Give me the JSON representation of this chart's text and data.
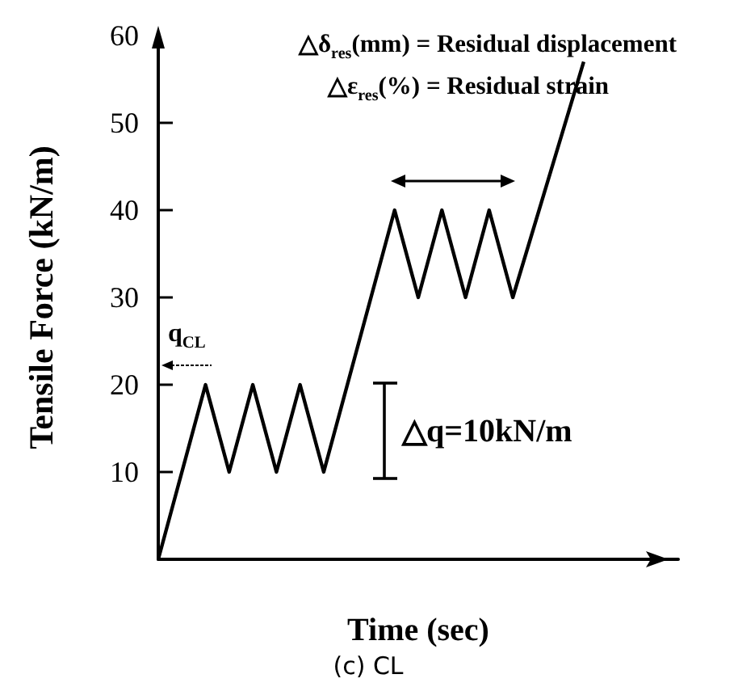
{
  "chart_data": {
    "type": "line",
    "xlabel": "Time (sec)",
    "ylabel": "Tensile Force (kN/m)",
    "categories": [
      null,
      null,
      null,
      null,
      null,
      null,
      null,
      null,
      null,
      null,
      null,
      null,
      null,
      null,
      null,
      null,
      null,
      null,
      null,
      null,
      null,
      null,
      null
    ],
    "values": [
      0,
      null,
      20,
      10,
      20,
      10,
      20,
      10,
      null,
      null,
      40,
      30,
      40,
      30,
      40,
      30,
      null,
      null,
      57,
      null,
      null,
      null,
      null
    ],
    "color": "#000000",
    "marker": "none",
    "line_style": "solid",
    "tick_labels": "y",
    "ylim": [
      0,
      60
    ],
    "yticks": [
      {
        "value": 0,
        "label": null
      },
      10,
      20,
      30,
      40,
      50,
      60
    ],
    "annotations": [
      "△δ$_{res}$(mm) = Residual displacement",
      "△ε$_{res}$(%) = Residual strain",
      "△q=10kN/m",
      "q$_{CL}$",
      "(c) CL"
    ]
  }
}
